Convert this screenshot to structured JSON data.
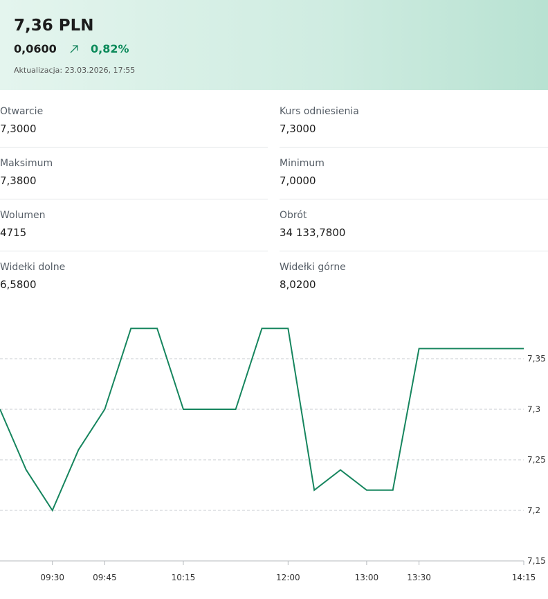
{
  "quote": {
    "price": "7,36 PLN",
    "change": "0,0600",
    "change_pct": "0,82%",
    "updated": "Aktualizacja: 23.03.2026, 17:55"
  },
  "stats": [
    {
      "label": "Otwarcie",
      "value": "7,3000"
    },
    {
      "label": "Kurs odniesienia",
      "value": "7,3000"
    },
    {
      "label": "Maksimum",
      "value": "7,3800"
    },
    {
      "label": "Minimum",
      "value": "7,0000"
    },
    {
      "label": "Wolumen",
      "value": "4715"
    },
    {
      "label": "Obrót",
      "value": "34 133,7800"
    },
    {
      "label": "Widełki dolne",
      "value": "6,5800"
    },
    {
      "label": "Widełki górne",
      "value": "8,0200"
    }
  ],
  "chart_data": {
    "type": "line",
    "categories": [
      null,
      null,
      "09:30",
      null,
      "09:45",
      null,
      null,
      "10:15",
      null,
      null,
      null,
      "12:00",
      null,
      null,
      "13:00",
      null,
      "13:30",
      null,
      null,
      null,
      "14:15"
    ],
    "series": [
      {
        "color": "#16855e",
        "values": [
          7.3,
          7.24,
          7.2,
          7.26,
          7.3,
          7.38,
          7.38,
          7.3,
          7.3,
          7.3,
          7.38,
          7.38,
          7.22,
          7.24,
          7.22,
          7.22,
          7.36,
          7.36,
          7.36,
          7.36,
          7.36
        ]
      }
    ],
    "ylim": [
      7.15,
      7.4
    ],
    "yticks": [
      {
        "value": 7.15,
        "label": "7,15"
      },
      {
        "value": 7.2,
        "label": "7,2"
      },
      {
        "value": 7.25,
        "label": "7,25"
      },
      {
        "value": 7.3,
        "label": "7,3"
      },
      {
        "value": 7.35,
        "label": "7,35"
      }
    ],
    "grid": true
  }
}
